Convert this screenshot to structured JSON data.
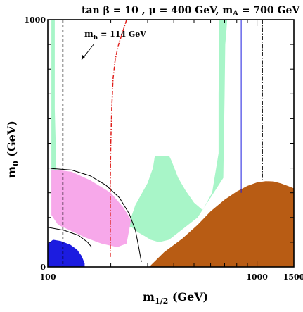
{
  "chart_data": {
    "type": "area",
    "title": "tan β = 10 ,  μ = 400 GeV,  m_A = 700 GeV",
    "title_parts": {
      "pre": "tan β = 10 ,  μ = 400 GeV,  m",
      "sub": "A",
      "post": " = 700 GeV"
    },
    "xlabel": {
      "main": "m",
      "sub": "1/2",
      "unit": " (GeV)"
    },
    "ylabel": {
      "main": "m",
      "sub": "0",
      "unit": " (GeV)"
    },
    "xlim": [
      100,
      1500
    ],
    "ylim": [
      0,
      1000
    ],
    "x_ticks": [
      100,
      1000,
      1500
    ],
    "x_tick_labels": [
      "100",
      "1000",
      "1500"
    ],
    "y_ticks": [
      0,
      1000
    ],
    "y_tick_labels": [
      "0",
      "1000"
    ],
    "grid": false,
    "colors": {
      "wmap_region": "#a8f5c8",
      "stau_lsp_region": "#b85c14",
      "g_minus_2_region": "#f7a8ea",
      "b_to_s_gamma_region": "#1c1ce0",
      "lower_strip": "#a8f5c8"
    },
    "annotations": [
      {
        "label_main": "m",
        "label_sub": "h",
        "label_post": " = 114 GeV",
        "x": 250,
        "y": 945,
        "arrow_to": [
          200,
          820
        ]
      }
    ],
    "series": [
      {
        "kind": "region",
        "color": "#a8f5c8",
        "polygon": [
          [
            104,
            1000
          ],
          [
            108,
            1000
          ],
          [
            108,
            640
          ],
          [
            110,
            380
          ],
          [
            104,
            300
          ]
        ]
      },
      {
        "kind": "region",
        "color": "#a8f5c8",
        "polygon": [
          [
            660,
            1000
          ],
          [
            720,
            1000
          ],
          [
            715,
            960
          ],
          [
            705,
            900
          ],
          [
            700,
            700
          ],
          [
            690,
            360
          ],
          [
            610,
            290
          ],
          [
            520,
            200
          ],
          [
            380,
            110
          ],
          [
            340,
            100
          ],
          [
            310,
            110
          ],
          [
            290,
            125
          ],
          [
            270,
            140
          ],
          [
            252,
            160
          ],
          [
            242,
            165
          ],
          [
            262,
            250
          ],
          [
            300,
            340
          ],
          [
            318,
            400
          ],
          [
            325,
            450
          ],
          [
            380,
            450
          ],
          [
            390,
            430
          ],
          [
            420,
            360
          ],
          [
            455,
            310
          ],
          [
            500,
            260
          ],
          [
            550,
            230
          ],
          [
            610,
            300
          ],
          [
            655,
            460
          ],
          [
            655,
            700
          ],
          [
            660,
            900
          ]
        ]
      },
      {
        "kind": "region",
        "color": "#b85c14",
        "polygon": [
          [
            305,
            0
          ],
          [
            360,
            60
          ],
          [
            440,
            115
          ],
          [
            520,
            170
          ],
          [
            600,
            225
          ],
          [
            700,
            272
          ],
          [
            800,
            305
          ],
          [
            900,
            328
          ],
          [
            1000,
            342
          ],
          [
            1100,
            347
          ],
          [
            1200,
            346
          ],
          [
            1300,
            338
          ],
          [
            1400,
            328
          ],
          [
            1500,
            318
          ],
          [
            1500,
            0
          ]
        ]
      },
      {
        "kind": "region",
        "color": "#f7a8ea",
        "polygon": [
          [
            104,
            395
          ],
          [
            130,
            385
          ],
          [
            160,
            350
          ],
          [
            200,
            300
          ],
          [
            230,
            240
          ],
          [
            250,
            190
          ],
          [
            238,
            95
          ],
          [
            215,
            80
          ],
          [
            180,
            95
          ],
          [
            150,
            120
          ],
          [
            130,
            145
          ],
          [
            112,
            170
          ],
          [
            104,
            210
          ]
        ]
      },
      {
        "kind": "region",
        "color": "#1c1ce0",
        "polygon": [
          [
            100,
            0
          ],
          [
            100,
            95
          ],
          [
            106,
            110
          ],
          [
            115,
            105
          ],
          [
            128,
            90
          ],
          [
            138,
            70
          ],
          [
            145,
            45
          ],
          [
            150,
            15
          ],
          [
            150,
            0
          ]
        ]
      },
      {
        "kind": "curve",
        "name": "g-2 boundary",
        "color": "#000000",
        "style": "solid",
        "points": [
          [
            104,
            398
          ],
          [
            130,
            392
          ],
          [
            160,
            368
          ],
          [
            190,
            330
          ],
          [
            220,
            280
          ],
          [
            245,
            215
          ],
          [
            262,
            150
          ],
          [
            272,
            80
          ],
          [
            280,
            20
          ]
        ]
      },
      {
        "kind": "curve",
        "name": "lower solid black",
        "color": "#000000",
        "style": "solid",
        "points": [
          [
            100,
            160
          ],
          [
            120,
            148
          ],
          [
            140,
            128
          ],
          [
            155,
            100
          ],
          [
            162,
            80
          ]
        ]
      },
      {
        "kind": "curve",
        "name": "mh 114 GeV",
        "color": "#e0201c",
        "style": "dashdot",
        "points": [
          [
            238,
            1000
          ],
          [
            230,
            960
          ],
          [
            218,
            900
          ],
          [
            210,
            840
          ],
          [
            205,
            760
          ],
          [
            202,
            640
          ],
          [
            200,
            500
          ],
          [
            199,
            350
          ],
          [
            199,
            200
          ],
          [
            199,
            40
          ]
        ]
      },
      {
        "kind": "curve",
        "name": "chargino limit",
        "color": "#000000",
        "style": "dashed",
        "points": [
          [
            118,
            1000
          ],
          [
            118,
            700
          ],
          [
            118,
            400
          ],
          [
            118,
            0
          ]
        ]
      },
      {
        "kind": "curve",
        "name": "dash-dot black vertical",
        "color": "#000000",
        "style": "dashdot",
        "points": [
          [
            1060,
            1000
          ],
          [
            1060,
            800
          ],
          [
            1060,
            600
          ],
          [
            1060,
            350
          ]
        ]
      },
      {
        "kind": "curve",
        "name": "blue vertical",
        "color": "#1c1ce0",
        "style": "solid",
        "points": [
          [
            840,
            1000
          ],
          [
            840,
            700
          ],
          [
            840,
            420
          ],
          [
            840,
            300
          ]
        ]
      }
    ]
  }
}
